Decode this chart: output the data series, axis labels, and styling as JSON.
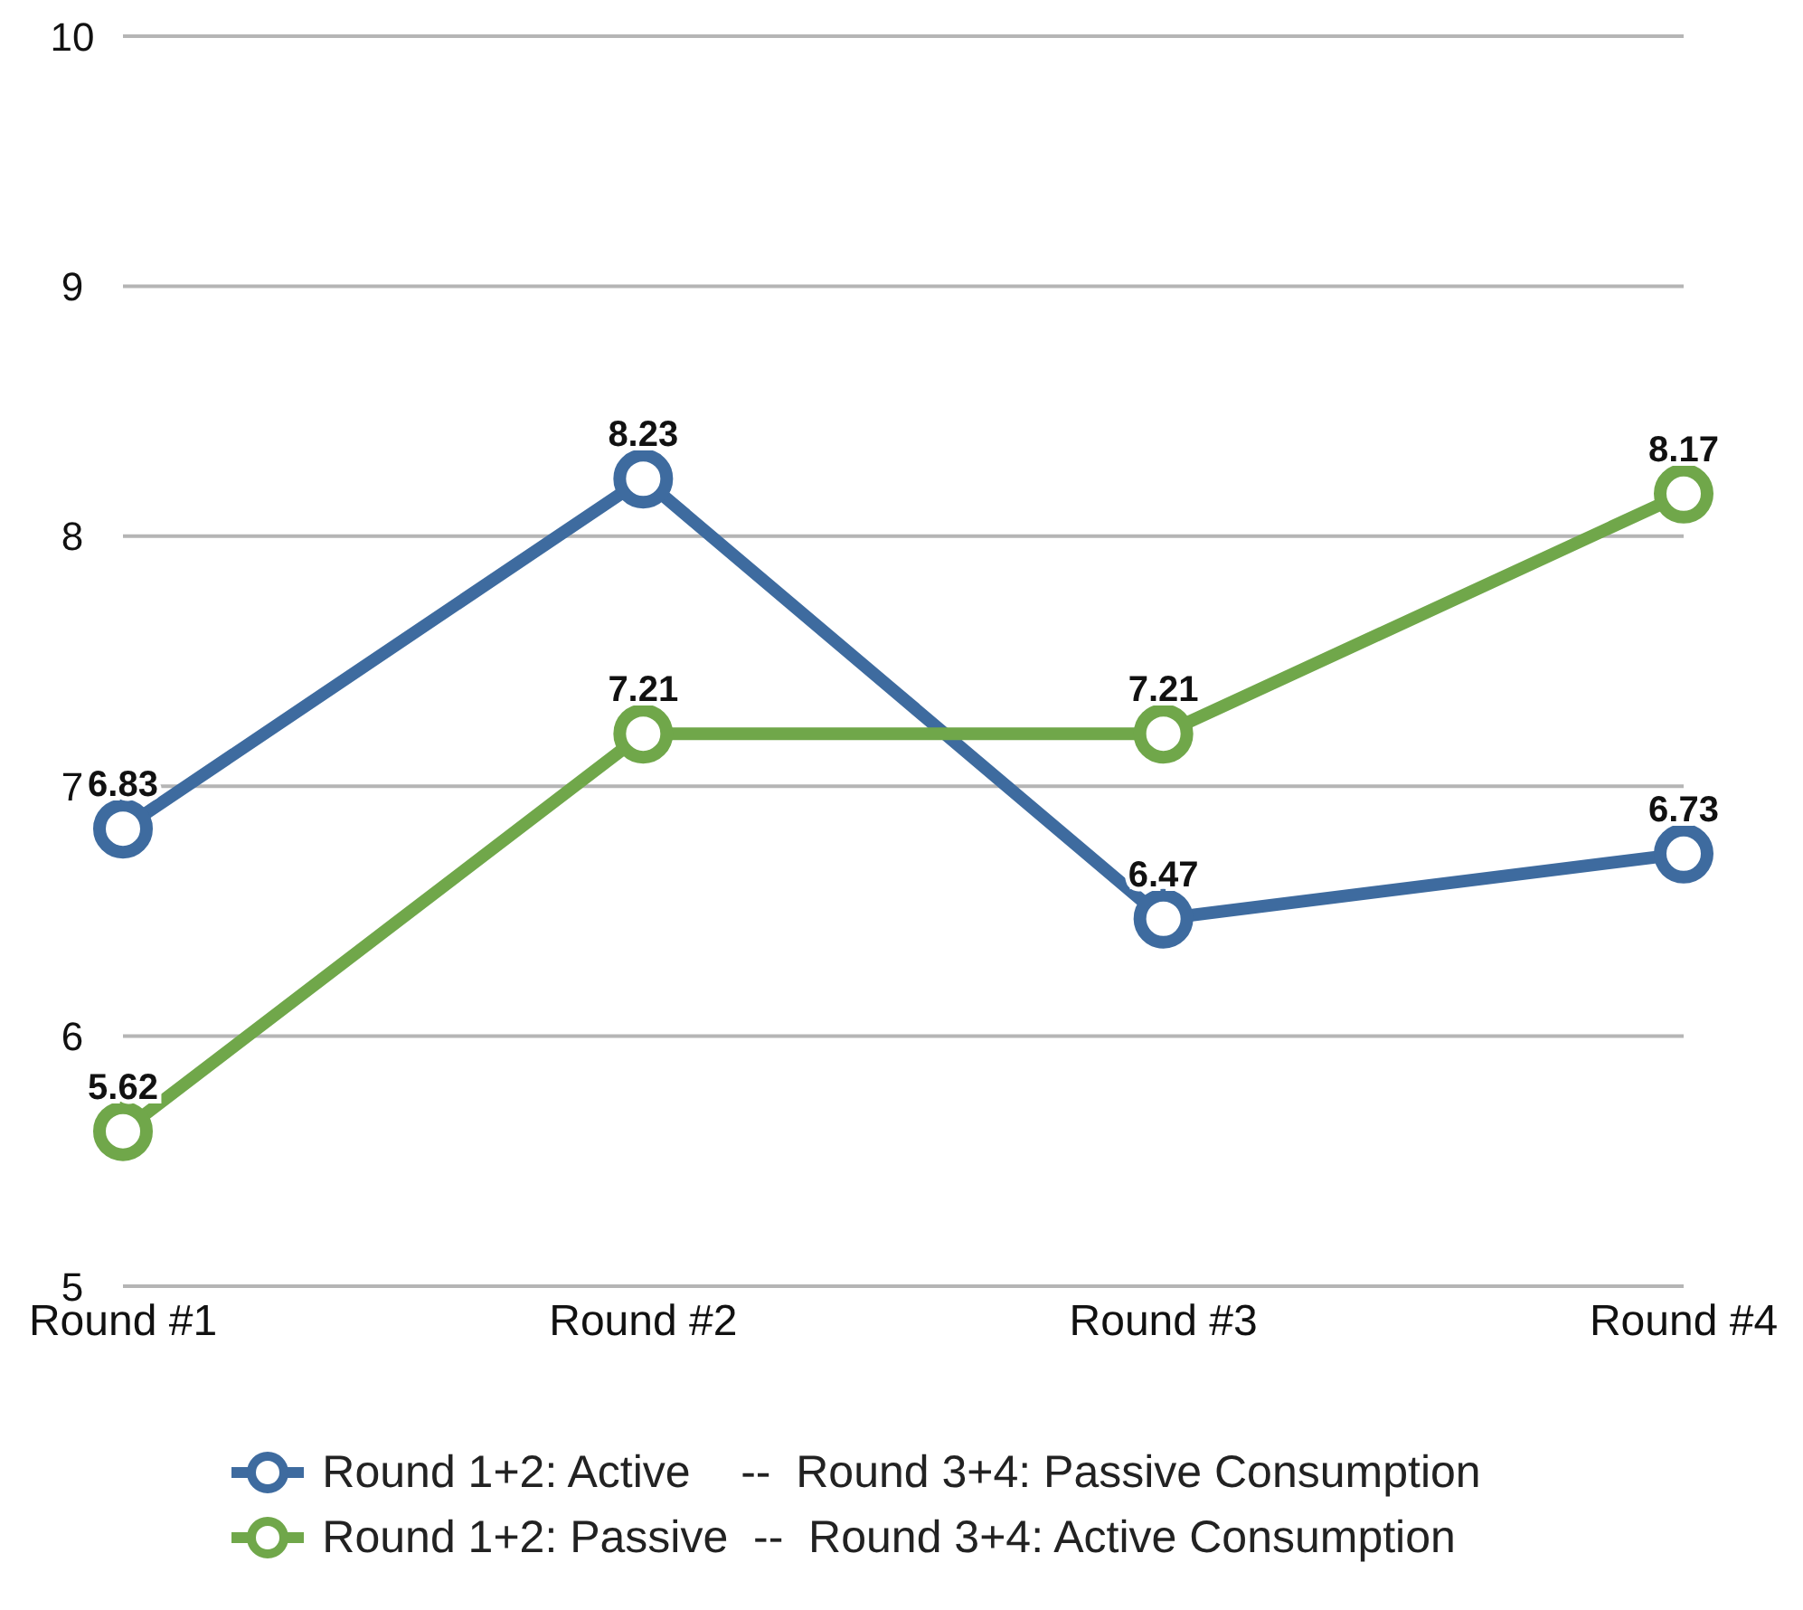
{
  "chart_data": {
    "type": "line",
    "categories": [
      "Round #1",
      "Round #2",
      "Round #3",
      "Round #4"
    ],
    "series": [
      {
        "name": "Round 1+2: Active    --  Round 3+4: Passive Consumption",
        "color": "#3e6b9f",
        "values": [
          6.83,
          8.23,
          6.47,
          6.73
        ]
      },
      {
        "name": "Round 1+2: Passive  --  Round 3+4: Active Consumption",
        "color": "#70a74a",
        "values": [
          5.62,
          7.21,
          7.21,
          8.17
        ]
      }
    ],
    "ylim": [
      5,
      10
    ],
    "yticks": [
      5,
      6,
      7,
      8,
      9,
      10
    ],
    "grid": "y",
    "legend": "bottom",
    "marker": "circle",
    "line_style": "solid",
    "data_labels": true
  }
}
